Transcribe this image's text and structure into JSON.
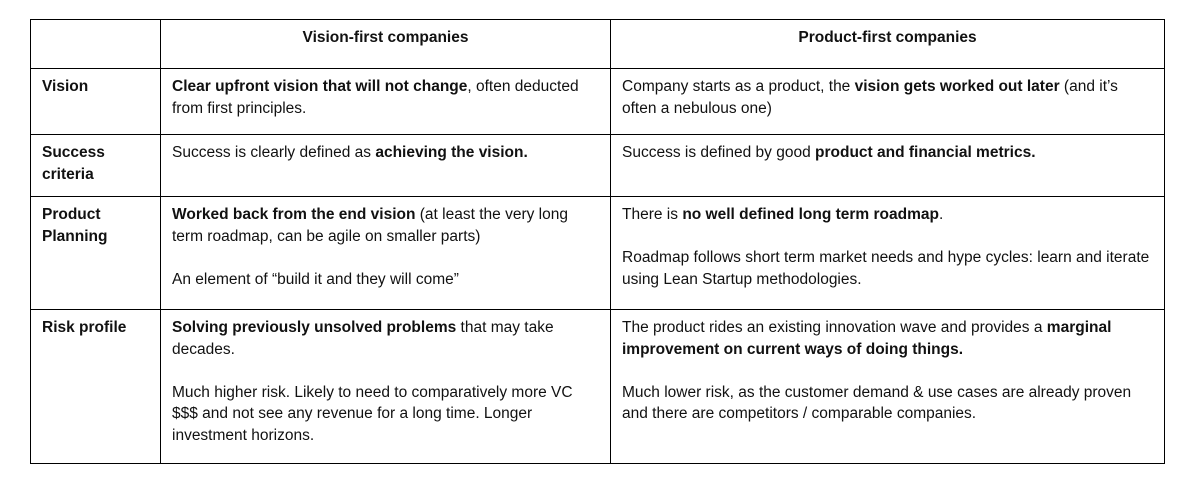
{
  "table": {
    "colors": {
      "highlight": "#c9daf8",
      "border": "#000000",
      "page_background": "#ffffff",
      "text": "#111111"
    },
    "header": {
      "vision_first": "Vision-first companies",
      "product_first": "Product-first companies"
    },
    "rows": [
      {
        "label": "Vision",
        "vision_first_hl": true,
        "product_first_hl": true,
        "vision_first": [
          [
            {
              "t": "Clear upfront vision that will not change",
              "b": true
            },
            {
              "t": ", often deducted from first principles.",
              "b": false
            }
          ]
        ],
        "product_first": [
          [
            {
              "t": "Company starts as a product, the ",
              "b": false
            },
            {
              "t": "vision gets worked out later",
              "b": true
            },
            {
              "t": " (and it’s often a nebulous one)",
              "b": false
            }
          ]
        ]
      },
      {
        "label": "Success criteria",
        "vision_first_hl": false,
        "product_first_hl": true,
        "vision_first": [
          [
            {
              "t": "Success is clearly defined as ",
              "b": false
            },
            {
              "t": "achieving the vision.",
              "b": true
            }
          ]
        ],
        "product_first": [
          [
            {
              "t": "Success is defined by good ",
              "b": false
            },
            {
              "t": "product and financial metrics.",
              "b": true
            }
          ]
        ]
      },
      {
        "label": "Product Planning",
        "vision_first_hl": false,
        "product_first_hl": true,
        "vision_first": [
          [
            {
              "t": "Worked back from the end vision",
              "b": true
            },
            {
              "t": " (at least the very long term roadmap, can be agile on smaller parts)",
              "b": false
            }
          ],
          [
            {
              "t": "An element of “build it and they will come”",
              "b": false
            }
          ]
        ],
        "product_first": [
          [
            {
              "t": "There is ",
              "b": false
            },
            {
              "t": "no well defined long term roadmap",
              "b": true
            },
            {
              "t": ".",
              "b": false
            }
          ],
          [
            {
              "t": "Roadmap follows short term market needs and hype cycles: learn and iterate using Lean Startup methodologies.",
              "b": false
            }
          ]
        ]
      },
      {
        "label": "Risk profile",
        "vision_first_hl": true,
        "product_first_hl": true,
        "vision_first": [
          [
            {
              "t": "Solving previously unsolved problems",
              "b": true
            },
            {
              "t": " that may take decades.",
              "b": false
            }
          ],
          [
            {
              "t": "Much higher risk. Likely to need to comparatively more VC $$$ and not see any revenue for a long time. Longer investment horizons.",
              "b": false
            }
          ]
        ],
        "product_first": [
          [
            {
              "t": "The product rides an existing innovation wave and provides a ",
              "b": false
            },
            {
              "t": "marginal improvement on current ways of doing things.",
              "b": true
            }
          ],
          [
            {
              "t": "Much lower risk, as the customer demand & use cases are already proven and there are competitors / comparable companies.",
              "b": false
            }
          ]
        ]
      }
    ]
  }
}
